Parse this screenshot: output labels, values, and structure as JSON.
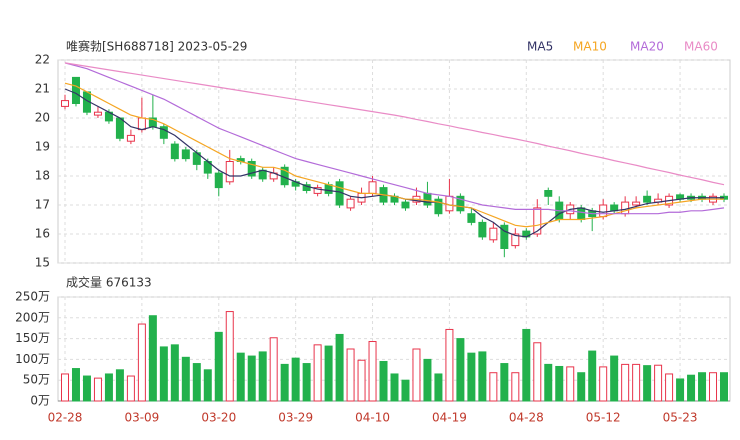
{
  "chart_data": {
    "type": "candlestick",
    "title": "唯赛勃[SH688718] 2023-05-29",
    "categories": [
      "02-28",
      null,
      null,
      null,
      null,
      null,
      null,
      "03-09",
      null,
      null,
      null,
      null,
      null,
      null,
      "03-20",
      null,
      null,
      null,
      null,
      null,
      null,
      "03-29",
      null,
      null,
      null,
      null,
      null,
      null,
      "04-10",
      null,
      null,
      null,
      null,
      null,
      null,
      "04-19",
      null,
      null,
      null,
      null,
      null,
      null,
      "04-28",
      null,
      null,
      null,
      null,
      null,
      null,
      "05-12",
      null,
      null,
      null,
      null,
      null,
      null,
      "05-23",
      null,
      null,
      null,
      null
    ],
    "open": [
      20.4,
      21.4,
      20.9,
      20.1,
      20.2,
      20.0,
      19.2,
      19.6,
      20.0,
      19.7,
      19.1,
      18.9,
      18.8,
      18.5,
      18.1,
      17.8,
      18.6,
      18.5,
      18.2,
      17.9,
      18.3,
      17.8,
      17.7,
      17.4,
      17.7,
      17.8,
      16.9,
      17.1,
      17.4,
      17.6,
      17.3,
      17.1,
      17.1,
      17.4,
      17.2,
      16.8,
      17.3,
      16.7,
      16.4,
      15.8,
      16.3,
      15.6,
      16.1,
      16.0,
      17.5,
      17.1,
      16.7,
      16.9,
      16.8,
      16.6,
      17.0,
      16.7,
      17.0,
      17.3,
      17.1,
      17.0,
      17.35,
      17.3,
      17.3,
      17.1,
      17.3
    ],
    "high": [
      20.8,
      21.4,
      20.9,
      20.4,
      20.3,
      20.0,
      19.6,
      20.7,
      20.8,
      19.8,
      19.2,
      19.0,
      18.9,
      18.6,
      18.2,
      18.9,
      18.7,
      18.6,
      18.3,
      18.3,
      18.4,
      17.9,
      17.8,
      17.7,
      17.8,
      17.9,
      17.3,
      17.6,
      18.0,
      17.7,
      17.4,
      17.2,
      17.6,
      17.8,
      17.3,
      17.9,
      17.4,
      16.9,
      16.5,
      16.4,
      16.4,
      16.2,
      16.2,
      17.2,
      17.6,
      17.3,
      17.1,
      17.0,
      16.9,
      17.2,
      17.1,
      17.3,
      17.3,
      17.5,
      17.4,
      17.4,
      17.4,
      17.4,
      17.4,
      17.4,
      17.4
    ],
    "low": [
      20.3,
      20.4,
      20.1,
      20.0,
      19.8,
      19.2,
      19.1,
      19.5,
      19.6,
      19.1,
      18.5,
      18.5,
      18.2,
      17.9,
      17.3,
      17.7,
      18.4,
      17.9,
      17.8,
      17.8,
      17.6,
      17.5,
      17.4,
      17.3,
      17.3,
      16.9,
      16.8,
      17.0,
      17.3,
      17.0,
      17.0,
      16.8,
      17.0,
      16.9,
      16.6,
      16.7,
      16.7,
      16.3,
      15.8,
      15.7,
      15.2,
      15.5,
      15.8,
      15.9,
      17.0,
      16.4,
      16.5,
      16.4,
      16.1,
      16.5,
      16.7,
      16.6,
      16.9,
      17.0,
      17.0,
      16.9,
      17.1,
      17.1,
      17.1,
      17.0,
      17.1
    ],
    "close": [
      20.6,
      20.5,
      20.2,
      20.2,
      19.9,
      19.3,
      19.4,
      20.0,
      19.7,
      19.3,
      18.6,
      18.6,
      18.4,
      18.1,
      17.6,
      18.5,
      18.5,
      18.0,
      17.9,
      18.1,
      17.7,
      17.65,
      17.5,
      17.6,
      17.4,
      17.0,
      17.2,
      17.4,
      17.8,
      17.1,
      17.1,
      16.9,
      17.3,
      17.0,
      16.7,
      17.3,
      16.8,
      16.4,
      15.9,
      16.2,
      15.5,
      16.0,
      15.9,
      16.9,
      17.3,
      16.5,
      17.0,
      16.5,
      16.6,
      17.0,
      16.8,
      17.1,
      17.1,
      17.1,
      17.2,
      17.3,
      17.2,
      17.2,
      17.2,
      17.3,
      17.2
    ],
    "up_color": "#e8334a",
    "down_color": "#22b14c",
    "ylim": [
      15,
      22
    ],
    "yticks": [
      15,
      16,
      17,
      18,
      19,
      20,
      21,
      22
    ],
    "grid": true,
    "ma_series": [
      {
        "name": "MA5",
        "color": "#333366",
        "values": [
          21.0,
          20.85,
          20.6,
          20.4,
          20.2,
          20.0,
          19.7,
          19.6,
          19.7,
          19.6,
          19.4,
          19.1,
          18.8,
          18.5,
          18.2,
          18.0,
          18.0,
          18.1,
          18.2,
          18.1,
          17.95,
          17.8,
          17.65,
          17.55,
          17.5,
          17.45,
          17.3,
          17.25,
          17.3,
          17.35,
          17.3,
          17.2,
          17.15,
          17.1,
          17.1,
          17.0,
          16.95,
          16.9,
          16.6,
          16.4,
          16.1,
          15.95,
          15.9,
          16.1,
          16.4,
          16.7,
          16.85,
          16.9,
          16.8,
          16.75,
          16.8,
          16.85,
          16.95,
          17.05,
          17.1,
          17.15,
          17.2,
          17.25,
          17.25,
          17.25,
          17.25
        ]
      },
      {
        "name": "MA10",
        "color": "#f5a623",
        "values": [
          21.2,
          21.1,
          20.9,
          20.7,
          20.5,
          20.3,
          20.1,
          20.0,
          19.95,
          19.8,
          19.6,
          19.4,
          19.2,
          19.0,
          18.8,
          18.6,
          18.5,
          18.4,
          18.3,
          18.3,
          18.2,
          18.0,
          17.9,
          17.8,
          17.7,
          17.6,
          17.5,
          17.4,
          17.4,
          17.35,
          17.3,
          17.2,
          17.2,
          17.15,
          17.1,
          17.0,
          16.95,
          16.9,
          16.75,
          16.6,
          16.45,
          16.3,
          16.25,
          16.3,
          16.4,
          16.5,
          16.5,
          16.5,
          16.55,
          16.6,
          16.7,
          16.8,
          16.9,
          16.95,
          17.0,
          17.05,
          17.1,
          17.15,
          17.2,
          17.2,
          17.2
        ]
      },
      {
        "name": "MA20",
        "color": "#b36bd9",
        "values": [
          21.9,
          21.8,
          21.7,
          21.55,
          21.4,
          21.25,
          21.1,
          20.95,
          20.8,
          20.65,
          20.45,
          20.25,
          20.05,
          19.85,
          19.65,
          19.5,
          19.35,
          19.2,
          19.05,
          18.9,
          18.75,
          18.6,
          18.5,
          18.4,
          18.3,
          18.2,
          18.1,
          18.0,
          17.9,
          17.8,
          17.7,
          17.6,
          17.5,
          17.4,
          17.35,
          17.3,
          17.2,
          17.1,
          17.0,
          16.95,
          16.9,
          16.85,
          16.85,
          16.85,
          16.85,
          16.8,
          16.8,
          16.75,
          16.7,
          16.7,
          16.7,
          16.7,
          16.7,
          16.7,
          16.7,
          16.75,
          16.75,
          16.8,
          16.8,
          16.85,
          16.9
        ]
      },
      {
        "name": "MA60",
        "color": "#e98bc6",
        "values": [
          21.9,
          21.84,
          21.78,
          21.72,
          21.66,
          21.6,
          21.54,
          21.48,
          21.42,
          21.36,
          21.3,
          21.24,
          21.18,
          21.12,
          21.06,
          21.0,
          20.94,
          20.88,
          20.82,
          20.76,
          20.7,
          20.64,
          20.58,
          20.52,
          20.46,
          20.4,
          20.34,
          20.28,
          20.22,
          20.16,
          20.1,
          20.03,
          19.95,
          19.88,
          19.8,
          19.73,
          19.65,
          19.58,
          19.5,
          19.43,
          19.35,
          19.28,
          19.2,
          19.12,
          19.03,
          18.95,
          18.87,
          18.78,
          18.7,
          18.62,
          18.53,
          18.45,
          18.37,
          18.28,
          18.2,
          18.12,
          18.03,
          17.95,
          17.87,
          17.78,
          17.7
        ]
      }
    ],
    "volume": {
      "title": "成交量 676133",
      "values": [
        65,
        78,
        60,
        55,
        65,
        75,
        60,
        185,
        205,
        130,
        135,
        105,
        90,
        75,
        165,
        215,
        115,
        108,
        118,
        152,
        88,
        103,
        90,
        135,
        132,
        160,
        125,
        98,
        143,
        95,
        65,
        50,
        125,
        100,
        65,
        172,
        150,
        115,
        118,
        68,
        90,
        68,
        172,
        140,
        88,
        83,
        82,
        68,
        120,
        82,
        108,
        88,
        88,
        85,
        86,
        65,
        53,
        62,
        68,
        68,
        68
      ],
      "ylim": [
        0,
        250
      ],
      "yticks": [
        {
          "value": 0,
          "label": "0万"
        },
        {
          "value": 50,
          "label": "50万"
        },
        {
          "value": 100,
          "label": "100万"
        },
        {
          "value": 150,
          "label": "150万"
        },
        {
          "value": 200,
          "label": "200万"
        },
        {
          "value": 250,
          "label": "250万"
        }
      ]
    }
  }
}
